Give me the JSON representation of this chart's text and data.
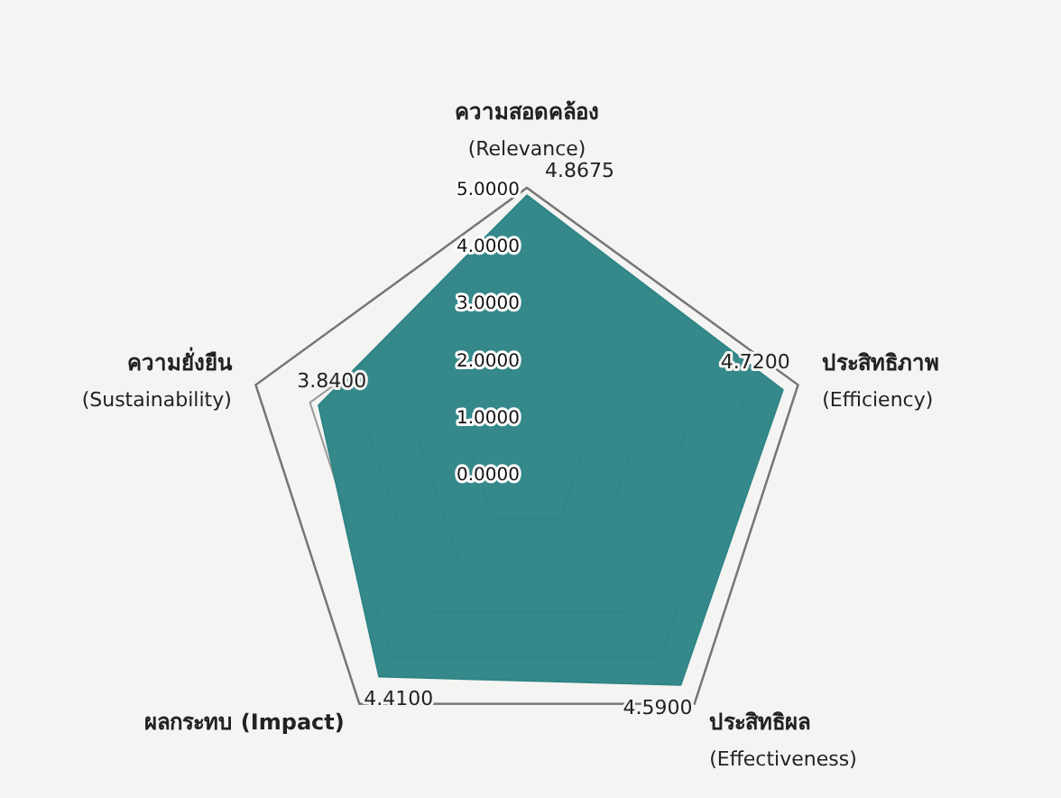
{
  "chart_data": {
    "type": "radar",
    "categories": [
      "ความสอดคล้อง\n(Relevance)",
      "ประสิทธิภาพ\n(Efficiency)",
      "ประสิทธิผล\n(Effectiveness)",
      "ผลกระทบ (Impact)",
      "ความยั่งยืน\n(Sustainability)"
    ],
    "series": [
      {
        "color": "#2f8586",
        "values": [
          4.8675,
          4.72,
          4.59,
          4.41,
          3.84
        ],
        "value_labels": [
          "4.8675",
          "4.7200",
          "4.5900",
          "4.4100",
          "3.8400"
        ]
      }
    ],
    "ylim": [
      0,
      5
    ],
    "yticks": [
      {
        "value": 0,
        "label": "0.0000"
      },
      {
        "value": 1,
        "label": "1.0000"
      },
      {
        "value": 2,
        "label": "2.0000"
      },
      {
        "value": 3,
        "label": "3.0000"
      },
      {
        "value": 4,
        "label": "4.0000"
      },
      {
        "value": 5,
        "label": "5.0000"
      }
    ],
    "grid": true
  }
}
